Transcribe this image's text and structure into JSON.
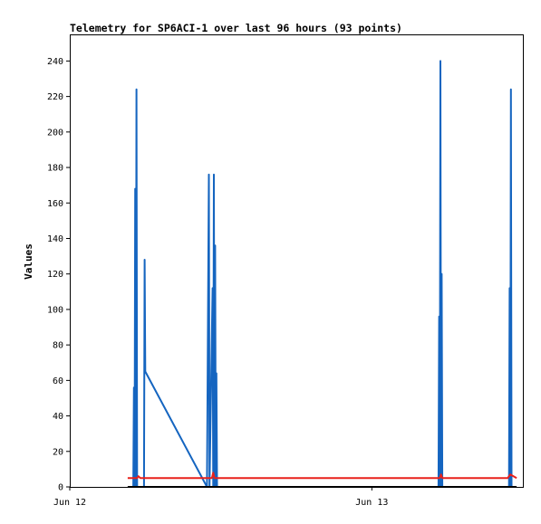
{
  "chart_data": {
    "type": "line",
    "title": "Telemetry for SP6ACI-1 over last 96 hours (93 points)",
    "ylabel": "Values",
    "xlabel": "",
    "ylim": [
      0,
      255
    ],
    "xlim_hours": [
      0,
      36
    ],
    "y_ticks": [
      0,
      20,
      40,
      60,
      80,
      100,
      120,
      140,
      160,
      180,
      200,
      220,
      240
    ],
    "x_ticks": [
      {
        "label": "Jun 12",
        "hour": 0
      },
      {
        "label": "Jun 13",
        "hour": 24
      }
    ],
    "grid": false,
    "legend": "none",
    "series": [
      {
        "color": "#1565c0",
        "points": [
          [
            5.05,
            0
          ],
          [
            5.1,
            56
          ],
          [
            5.15,
            0
          ],
          [
            5.2,
            168
          ],
          [
            5.25,
            0
          ],
          [
            5.3,
            224
          ],
          [
            5.35,
            0
          ],
          [
            5.9,
            0
          ],
          [
            5.95,
            128
          ],
          [
            6.0,
            65
          ],
          [
            10.9,
            0
          ],
          [
            11.05,
            176
          ],
          [
            11.1,
            0
          ],
          [
            11.35,
            112
          ],
          [
            11.4,
            0
          ],
          [
            11.45,
            176
          ],
          [
            11.5,
            0
          ],
          [
            11.55,
            136
          ],
          [
            11.6,
            0
          ],
          [
            11.65,
            64
          ],
          [
            11.7,
            0
          ],
          [
            29.3,
            0
          ],
          [
            29.35,
            96
          ],
          [
            29.4,
            0
          ],
          [
            29.45,
            240
          ],
          [
            29.5,
            0
          ],
          [
            29.55,
            120
          ],
          [
            29.6,
            0
          ],
          [
            34.9,
            0
          ],
          [
            34.95,
            112
          ],
          [
            35.0,
            0
          ],
          [
            35.05,
            224
          ],
          [
            35.1,
            0
          ]
        ]
      },
      {
        "color": "#e8211b",
        "points": [
          [
            4.6,
            5
          ],
          [
            5.35,
            5
          ],
          [
            5.45,
            6
          ],
          [
            5.6,
            5
          ],
          [
            11.3,
            5
          ],
          [
            11.4,
            8
          ],
          [
            11.5,
            5
          ],
          [
            29.4,
            5
          ],
          [
            29.5,
            7
          ],
          [
            29.6,
            5
          ],
          [
            34.8,
            5
          ],
          [
            35.0,
            7
          ],
          [
            35.5,
            5
          ]
        ]
      },
      {
        "color": "#000000",
        "points": [
          [
            4.6,
            0
          ],
          [
            35.5,
            0
          ]
        ]
      }
    ]
  }
}
